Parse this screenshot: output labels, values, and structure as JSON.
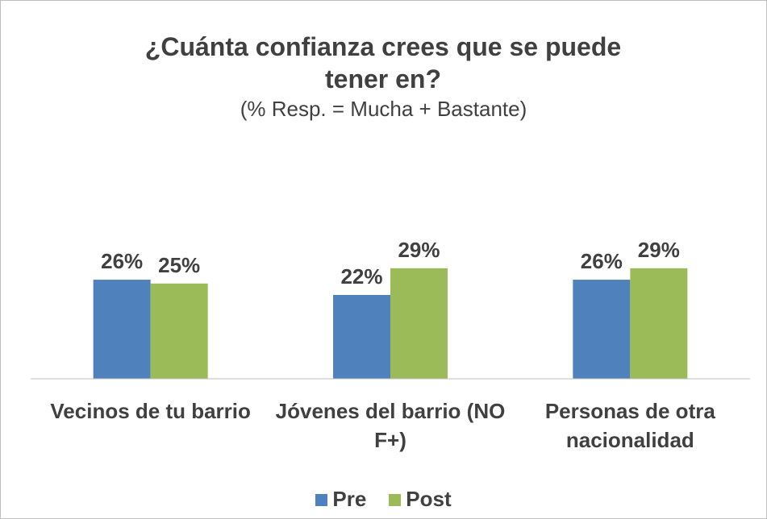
{
  "chart_data": {
    "type": "bar",
    "title": "¿Cuánta confianza crees que se puede tener en?",
    "subtitle": "(% Resp. = Mucha + Bastante)",
    "categories": [
      "Vecinos de tu barrio",
      "Jóvenes del barrio (NO F+)",
      "Personas de otra nacionalidad"
    ],
    "series": [
      {
        "name": "Pre",
        "color": "#4f81bd",
        "values": [
          26,
          22,
          26
        ],
        "value_labels": [
          "26%",
          "22%",
          "26%"
        ]
      },
      {
        "name": "Post",
        "color": "#9bbb59",
        "values": [
          25,
          29,
          29
        ],
        "value_labels": [
          "25%",
          "29%",
          "29%"
        ]
      }
    ],
    "ylim": [
      0,
      35
    ],
    "legend": "bottom"
  }
}
